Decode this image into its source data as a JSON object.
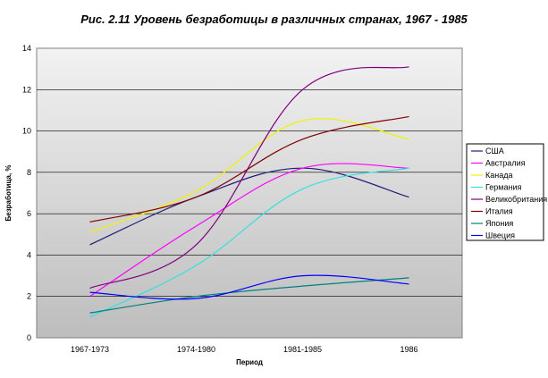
{
  "chart_data": {
    "type": "line",
    "title": "Рис. 2.11 Уровень безработицы в различных странах, 1967 - 1985",
    "xlabel": "Период",
    "ylabel": "Безработица, %",
    "categories": [
      "1967-1973",
      "1974-1980",
      "1981-1985",
      "1986"
    ],
    "ylim": [
      0,
      14
    ],
    "yticks": [
      0,
      2,
      4,
      6,
      8,
      10,
      12,
      14
    ],
    "grid": true,
    "legend_position": "right",
    "series": [
      {
        "name": "США",
        "color": "#1f1f7a",
        "values": [
          4.5,
          6.8,
          8.2,
          6.8
        ]
      },
      {
        "name": "Австралия",
        "color": "#ff00ff",
        "values": [
          2.0,
          5.4,
          8.2,
          8.2
        ]
      },
      {
        "name": "Канада",
        "color": "#f2f200",
        "values": [
          5.1,
          7.1,
          10.5,
          9.6
        ]
      },
      {
        "name": "Германия",
        "color": "#33e0e0",
        "values": [
          1.0,
          3.5,
          7.2,
          8.2
        ]
      },
      {
        "name": "Великобритания",
        "color": "#800080",
        "values": [
          2.4,
          4.5,
          12.0,
          13.1
        ]
      },
      {
        "name": "Италия",
        "color": "#800000",
        "values": [
          5.6,
          6.8,
          9.6,
          10.7
        ]
      },
      {
        "name": "Япония",
        "color": "#008080",
        "values": [
          1.2,
          2.0,
          2.5,
          2.9
        ]
      },
      {
        "name": "Швеция",
        "color": "#0000ff",
        "values": [
          2.2,
          1.9,
          3.0,
          2.6
        ]
      }
    ]
  }
}
